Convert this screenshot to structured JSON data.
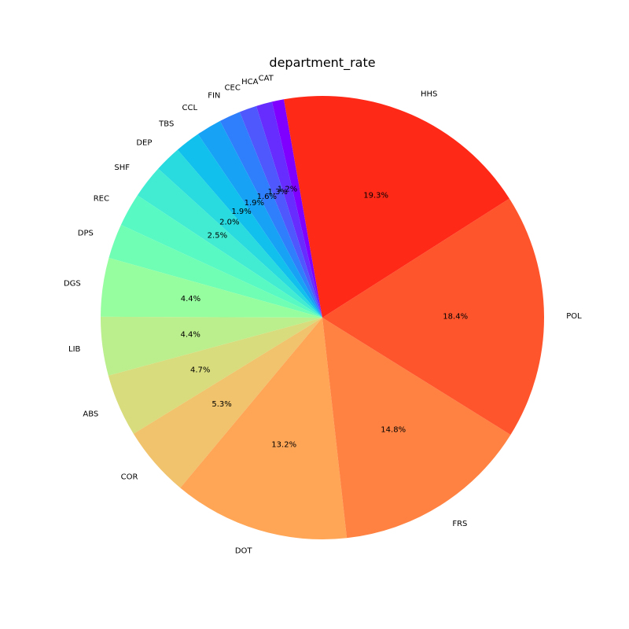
{
  "chart_data": {
    "type": "pie",
    "title": "department_rate",
    "start_angle_deg": 100,
    "direction": "counterclockwise",
    "slices": [
      {
        "label": "CAT",
        "pct": 0.9,
        "pct_label": "",
        "color": "#7f00ff"
      },
      {
        "label": "HCA",
        "pct": 1.2,
        "pct_label": "1.2%",
        "color": "#672cfe"
      },
      {
        "label": "CEC",
        "pct": 1.3,
        "pct_label": "1.3%",
        "color": "#4f58fd"
      },
      {
        "label": "FIN",
        "pct": 1.6,
        "pct_label": "1.6%",
        "color": "#2f7efb"
      },
      {
        "label": "CCL",
        "pct": 1.9,
        "pct_label": "1.9%",
        "color": "#17a2f6"
      },
      {
        "label": "TBS",
        "pct": 1.9,
        "pct_label": "1.9%",
        "color": "#11c0ec"
      },
      {
        "label": "DEP",
        "pct": 2.0,
        "pct_label": "2.0%",
        "color": "#29dadf"
      },
      {
        "label": "SHF",
        "pct": 2.5,
        "pct_label": "2.5%",
        "color": "#41ecd3"
      },
      {
        "label": "REC",
        "pct": 2.5,
        "pct_label": "",
        "color": "#59f9c4"
      },
      {
        "label": "DPS",
        "pct": 2.6,
        "pct_label": "",
        "color": "#6ffeb4"
      },
      {
        "label": "DGS",
        "pct": 4.4,
        "pct_label": "4.4%",
        "color": "#97fe9f"
      },
      {
        "label": "LIB",
        "pct": 4.4,
        "pct_label": "4.4%",
        "color": "#bbee8c"
      },
      {
        "label": "ABS",
        "pct": 4.7,
        "pct_label": "4.7%",
        "color": "#d8dc7c"
      },
      {
        "label": "COR",
        "pct": 5.3,
        "pct_label": "5.3%",
        "color": "#f0c36c"
      },
      {
        "label": "DOT",
        "pct": 13.2,
        "pct_label": "13.2%",
        "color": "#ffa556"
      },
      {
        "label": "FRS",
        "pct": 14.8,
        "pct_label": "14.8%",
        "color": "#ff8242"
      },
      {
        "label": "POL",
        "pct": 18.4,
        "pct_label": "18.4%",
        "color": "#ff552d"
      },
      {
        "label": "HHS",
        "pct": 19.3,
        "pct_label": "19.3%",
        "color": "#ff2918"
      }
    ]
  }
}
